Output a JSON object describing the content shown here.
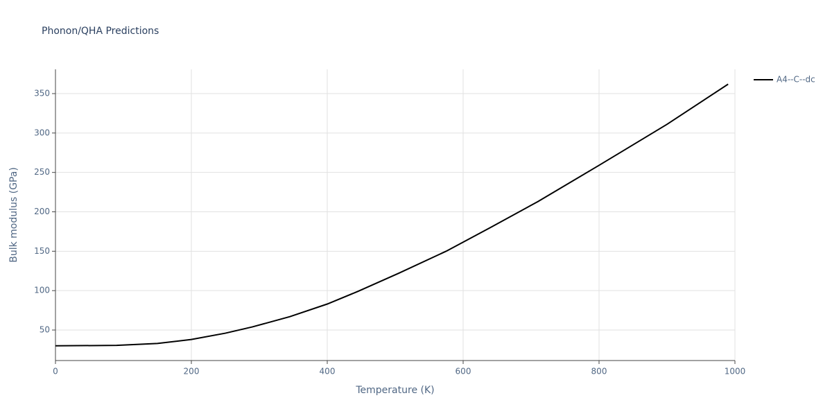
{
  "chart_data": {
    "type": "line",
    "title": "Phonon/QHA Predictions",
    "x_label": "Temperature (K)",
    "y_label": "Bulk modulus (GPa)",
    "series": [
      {
        "name": "A4--C--dc",
        "color": "#000000",
        "x": [
          0,
          90,
          150,
          200,
          250,
          290,
          345,
          400,
          445,
          505,
          575,
          640,
          710,
          800,
          900,
          990
        ],
        "values": [
          30,
          30.5,
          33,
          38,
          46,
          54,
          67,
          83,
          99,
          122,
          150,
          180,
          213,
          259,
          311,
          362
        ]
      }
    ],
    "xlim": [
      0,
      1000
    ],
    "xticks": [
      0,
      200,
      400,
      600,
      800,
      1000
    ],
    "ylim": [
      11.3,
      380.8
    ],
    "yticks": [
      50,
      100,
      150,
      200,
      250,
      300,
      350
    ],
    "grid": true,
    "legend": "right"
  }
}
